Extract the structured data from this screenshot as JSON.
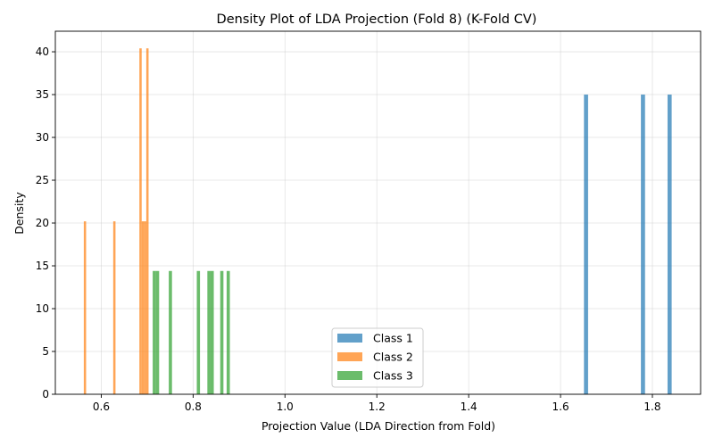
{
  "chart_data": {
    "type": "histogram",
    "title": "Density Plot of LDA Projection (Fold 8) (K-Fold CV)",
    "xlabel": "Projection Value (LDA Direction from Fold)",
    "ylabel": "Density",
    "xlim": [
      0.5,
      1.905
    ],
    "ylim": [
      0,
      42.4
    ],
    "xticks": [
      0.6,
      0.8,
      1.0,
      1.2,
      1.4,
      1.6,
      1.8
    ],
    "xtick_labels": [
      "0.6",
      "0.8",
      "1.0",
      "1.2",
      "1.4",
      "1.6",
      "1.8"
    ],
    "yticks": [
      0,
      5,
      10,
      15,
      20,
      25,
      30,
      35,
      40
    ],
    "ytick_labels": [
      "0",
      "5",
      "10",
      "15",
      "20",
      "25",
      "30",
      "35",
      "40"
    ],
    "grid": true,
    "legend_position": "bottom-center",
    "series": [
      {
        "name": "Class 1",
        "color": "#1f77b4",
        "bars": [
          {
            "x0": 1.651,
            "x1": 1.66,
            "density": 35.0
          },
          {
            "x0": 1.775,
            "x1": 1.784,
            "density": 35.0
          },
          {
            "x0": 1.833,
            "x1": 1.842,
            "density": 35.0
          }
        ]
      },
      {
        "name": "Class 2",
        "color": "#ff7f0e",
        "bars": [
          {
            "x0": 0.562,
            "x1": 0.567,
            "density": 20.2
          },
          {
            "x0": 0.626,
            "x1": 0.631,
            "density": 20.2
          },
          {
            "x0": 0.683,
            "x1": 0.688,
            "density": 40.4
          },
          {
            "x0": 0.688,
            "x1": 0.693,
            "density": 20.2
          },
          {
            "x0": 0.693,
            "x1": 0.698,
            "density": 20.2
          },
          {
            "x0": 0.698,
            "x1": 0.703,
            "density": 40.4
          }
        ]
      },
      {
        "name": "Class 3",
        "color": "#2ca02c",
        "bars": [
          {
            "x0": 0.712,
            "x1": 0.719,
            "density": 14.4
          },
          {
            "x0": 0.719,
            "x1": 0.726,
            "density": 14.4
          },
          {
            "x0": 0.747,
            "x1": 0.754,
            "density": 14.4
          },
          {
            "x0": 0.808,
            "x1": 0.815,
            "density": 14.4
          },
          {
            "x0": 0.831,
            "x1": 0.838,
            "density": 14.4
          },
          {
            "x0": 0.838,
            "x1": 0.845,
            "density": 14.4
          },
          {
            "x0": 0.859,
            "x1": 0.866,
            "density": 14.4
          },
          {
            "x0": 0.873,
            "x1": 0.88,
            "density": 14.4
          }
        ]
      }
    ]
  }
}
